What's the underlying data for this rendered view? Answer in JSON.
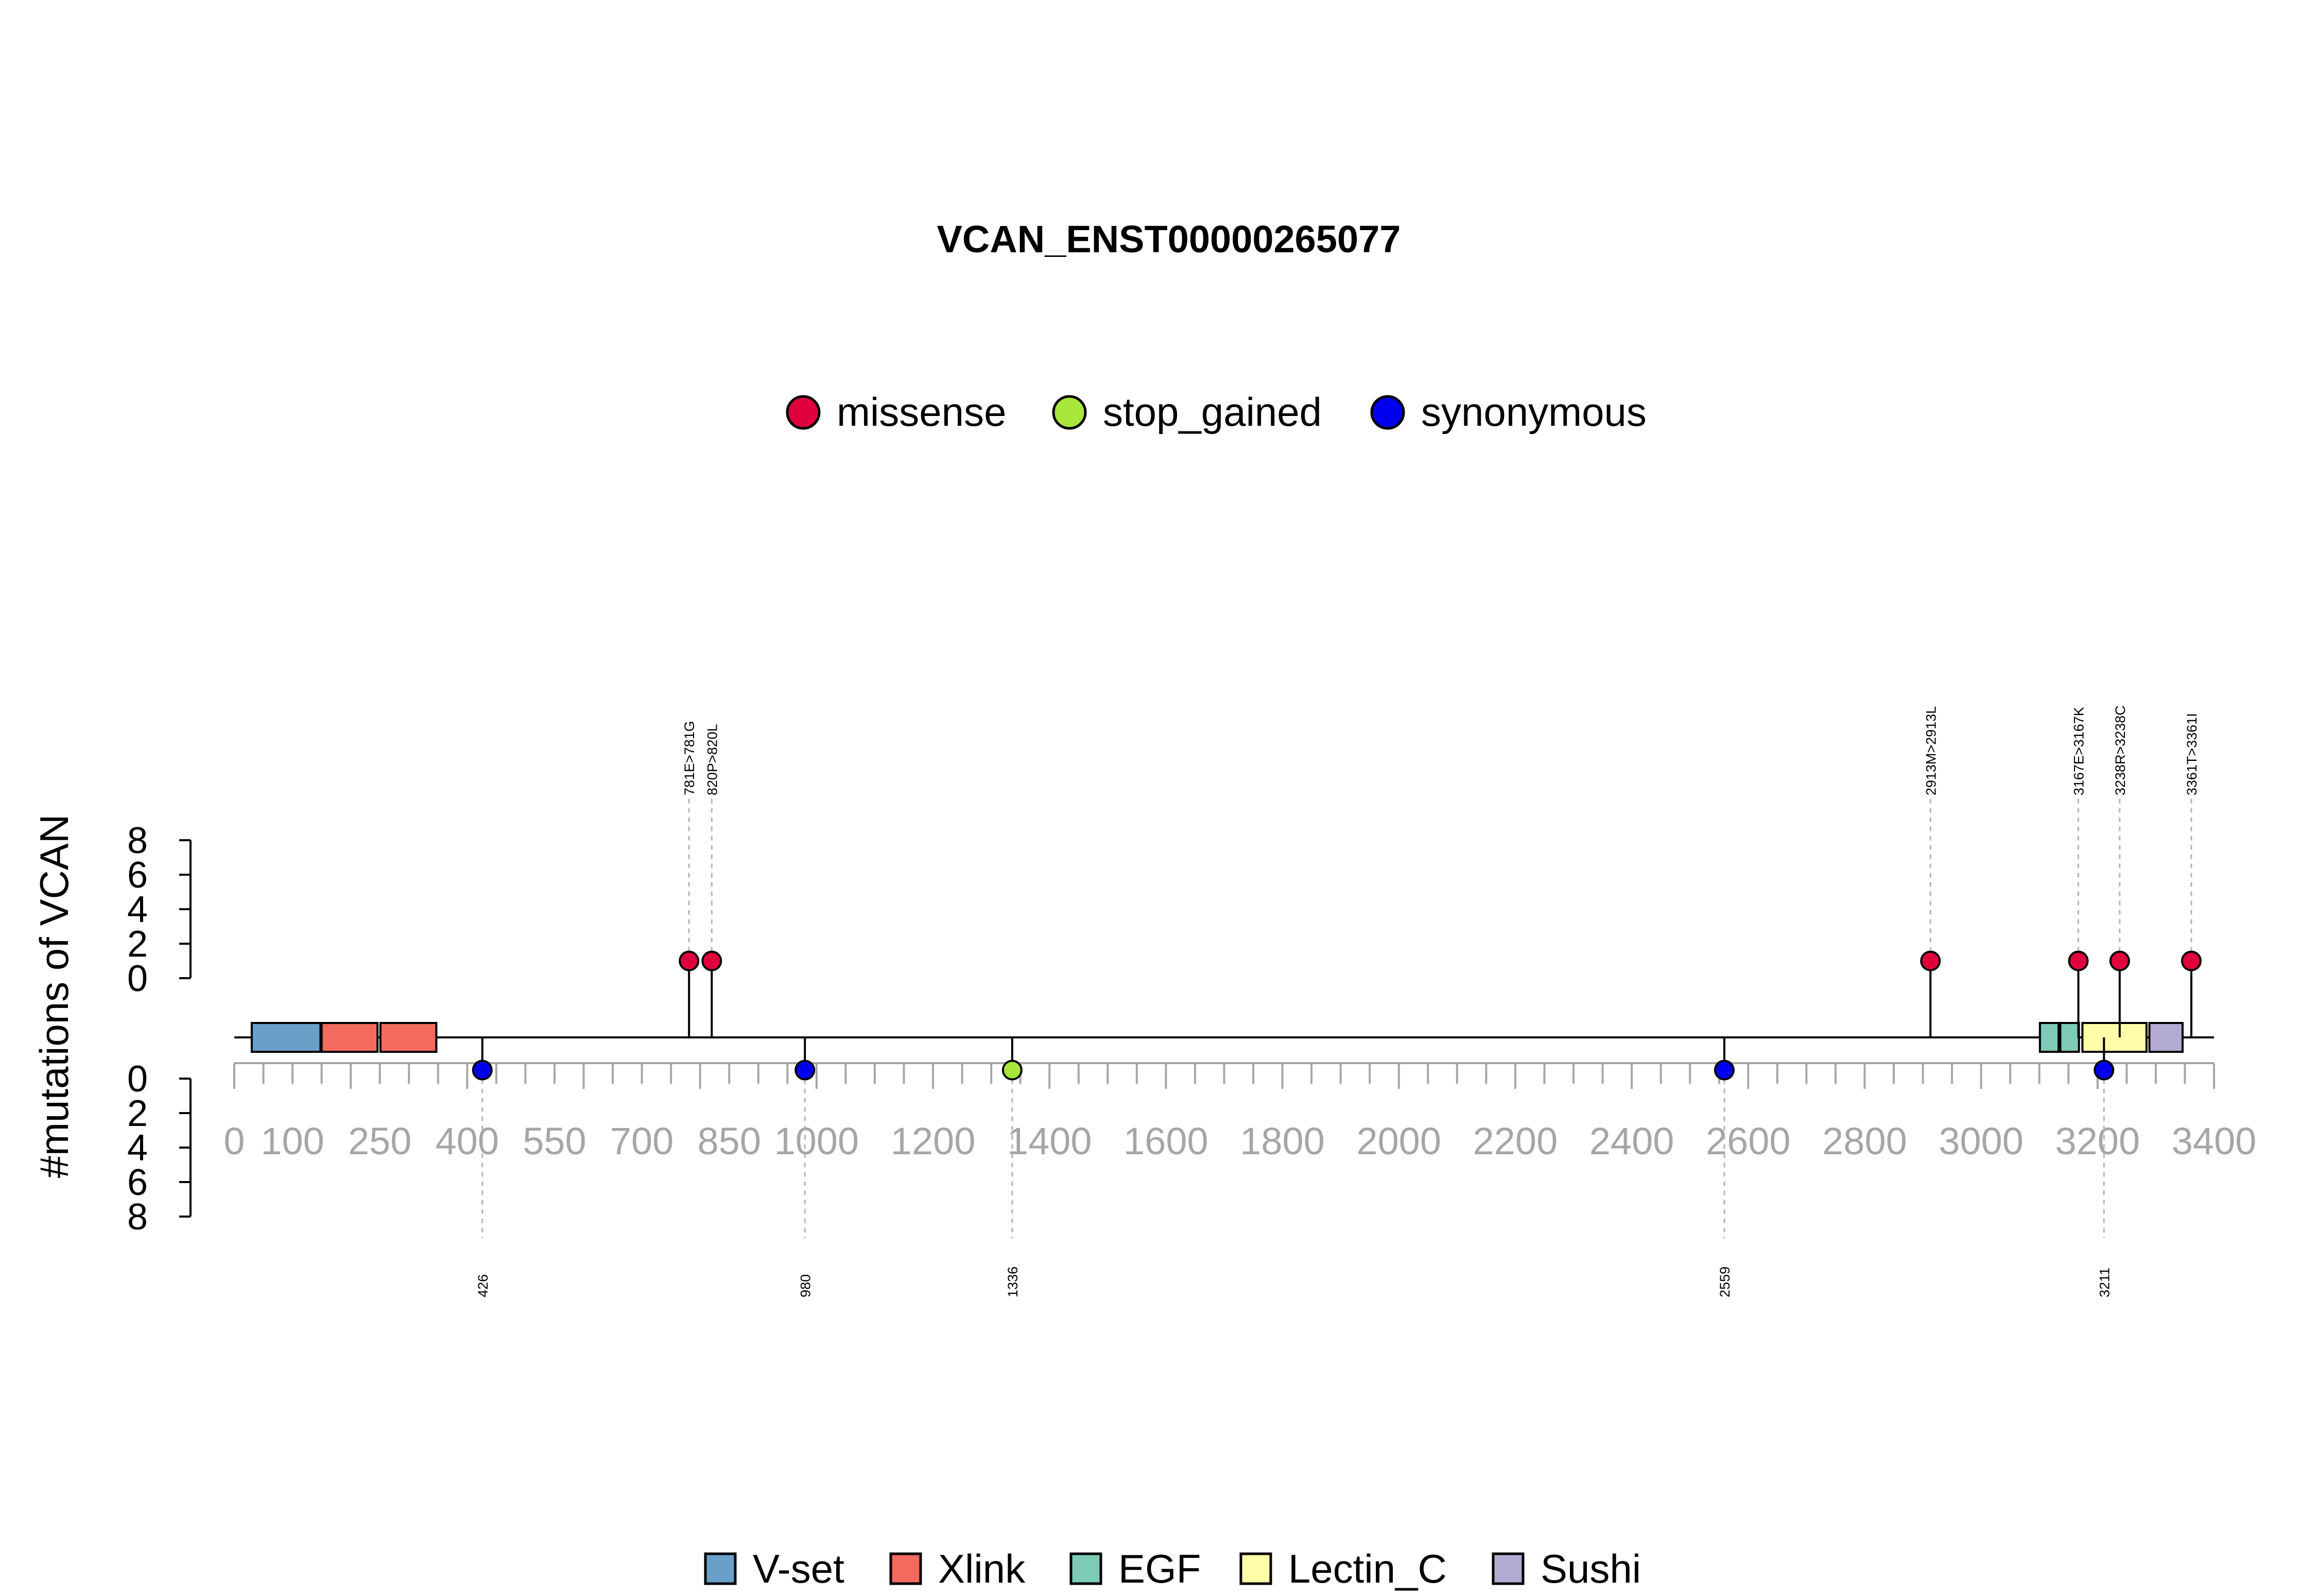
{
  "chart_data": {
    "type": "lollipop",
    "title": "VCAN_ENST00000265077",
    "ylabel": "#mutations of VCAN",
    "protein_length": 3396,
    "xlim": [
      0,
      3400
    ],
    "ylim_top": [
      0,
      8
    ],
    "ylim_bottom": [
      0,
      8
    ],
    "y_ticks": [
      "0",
      "2",
      "4",
      "6",
      "8"
    ],
    "x_tick_labels": [
      {
        "value": 0,
        "label": "0"
      },
      {
        "value": 100,
        "label": "100"
      },
      {
        "value": 250,
        "label": "250"
      },
      {
        "value": 400,
        "label": "400"
      },
      {
        "value": 550,
        "label": "550"
      },
      {
        "value": 700,
        "label": "700"
      },
      {
        "value": 850,
        "label": "850"
      },
      {
        "value": 1000,
        "label": "1000"
      },
      {
        "value": 1200,
        "label": "1200"
      },
      {
        "value": 1400,
        "label": "1400"
      },
      {
        "value": 1600,
        "label": "1600"
      },
      {
        "value": 1800,
        "label": "1800"
      },
      {
        "value": 2000,
        "label": "2000"
      },
      {
        "value": 2200,
        "label": "2200"
      },
      {
        "value": 2400,
        "label": "2400"
      },
      {
        "value": 2600,
        "label": "2600"
      },
      {
        "value": 2800,
        "label": "2800"
      },
      {
        "value": 3000,
        "label": "3000"
      },
      {
        "value": 3200,
        "label": "3200"
      },
      {
        "value": 3400,
        "label": "3400"
      }
    ],
    "mutation_legend": [
      {
        "name": "missense",
        "color": "#e0003c"
      },
      {
        "name": "stop_gained",
        "color": "#a8e63a"
      },
      {
        "name": "synonymous",
        "color": "#0000ee"
      }
    ],
    "domain_legend": [
      {
        "name": "V-set",
        "color": "#6aa0c8"
      },
      {
        "name": "Xlink",
        "color": "#f26b5e"
      },
      {
        "name": "EGF",
        "color": "#7dcab6"
      },
      {
        "name": "Lectin_C",
        "color": "#ffffaa"
      },
      {
        "name": "Sushi",
        "color": "#b4abd2"
      }
    ],
    "domains": [
      {
        "name": "V-set",
        "start": 30,
        "end": 148
      },
      {
        "name": "Xlink",
        "start": 150,
        "end": 246
      },
      {
        "name": "Xlink",
        "start": 251,
        "end": 347
      },
      {
        "name": "EGF",
        "start": 3101,
        "end": 3133
      },
      {
        "name": "EGF",
        "start": 3136,
        "end": 3168
      },
      {
        "name": "Lectin_C",
        "start": 3174,
        "end": 3284
      },
      {
        "name": "Sushi",
        "start": 3289,
        "end": 3346
      }
    ],
    "mutations_top": [
      {
        "position": 781,
        "count": 1,
        "type": "missense",
        "label": "781E>781G"
      },
      {
        "position": 820,
        "count": 1,
        "type": "missense",
        "label": "820P>820L"
      },
      {
        "position": 2913,
        "count": 1,
        "type": "missense",
        "label": "2913M>2913L"
      },
      {
        "position": 3167,
        "count": 1,
        "type": "missense",
        "label": "3167E>3167K"
      },
      {
        "position": 3238,
        "count": 1,
        "type": "missense",
        "label": "3238R>3238C"
      },
      {
        "position": 3361,
        "count": 1,
        "type": "missense",
        "label": "3361T>3361I"
      }
    ],
    "mutations_bottom": [
      {
        "position": 426,
        "count": 1,
        "type": "synonymous",
        "label": "426"
      },
      {
        "position": 980,
        "count": 1,
        "type": "synonymous",
        "label": "980"
      },
      {
        "position": 1336,
        "count": 1,
        "type": "stop_gained",
        "label": "1336"
      },
      {
        "position": 2559,
        "count": 1,
        "type": "synonymous",
        "label": "2559"
      },
      {
        "position": 3211,
        "count": 1,
        "type": "synonymous",
        "label": "3211"
      }
    ]
  }
}
